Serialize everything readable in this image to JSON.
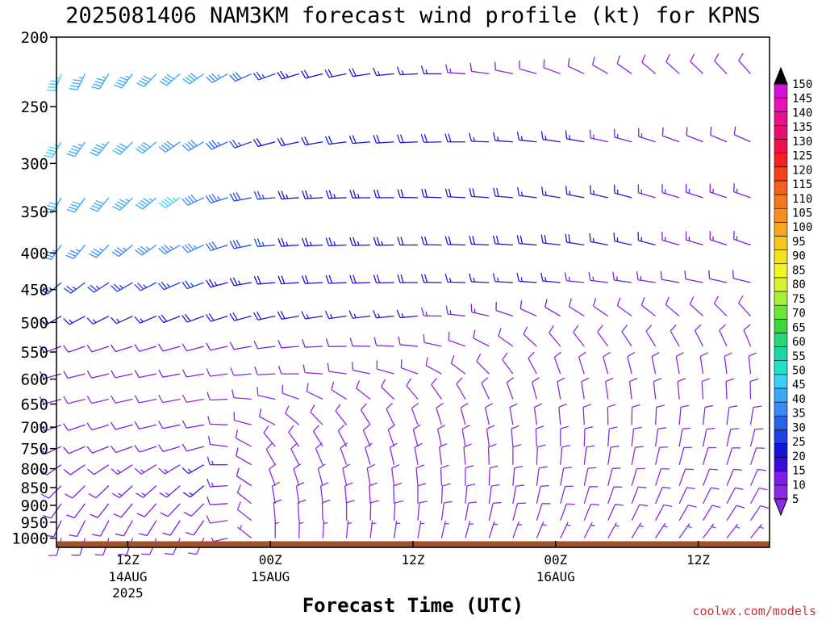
{
  "chart_data": {
    "type": "wind-barb-time-height",
    "title": "2025081406 NAM3KM forecast wind profile (kt) for KPNS",
    "xlabel": "Forecast Time (UTC)",
    "ylabel": "",
    "credit": "coolwx.com/models",
    "units": "kt",
    "y_axis": {
      "quantity": "pressure (hPa)",
      "scale": "log",
      "inverted": true,
      "range": [
        200,
        1030
      ],
      "ticks": [
        200,
        250,
        300,
        350,
        400,
        450,
        500,
        550,
        600,
        650,
        700,
        750,
        800,
        850,
        900,
        950,
        1000
      ]
    },
    "x_axis": {
      "quantity": "forecast hour from 2025081406",
      "range": [
        0,
        60
      ],
      "ticks": [
        {
          "hour": 6,
          "label": "12Z",
          "sub1": "14AUG",
          "sub2": "2025"
        },
        {
          "hour": 18,
          "label": "00Z",
          "sub1": "15AUG",
          "sub2": ""
        },
        {
          "hour": 30,
          "label": "12Z",
          "sub1": "",
          "sub2": ""
        },
        {
          "hour": 42,
          "label": "00Z",
          "sub1": "16AUG",
          "sub2": ""
        },
        {
          "hour": 54,
          "label": "12Z",
          "sub1": "",
          "sub2": ""
        }
      ]
    },
    "ground": {
      "top_pressure": 1010,
      "color": "#a0522d"
    },
    "times": [
      0,
      1,
      2,
      3,
      4,
      5,
      6,
      7,
      8,
      9,
      10,
      11,
      12,
      13,
      14,
      15,
      16,
      17,
      18,
      19,
      20,
      21,
      22,
      23,
      24,
      25,
      26,
      27,
      28,
      29,
      30,
      31,
      32,
      33,
      34,
      35,
      36,
      37,
      38,
      39,
      40,
      41,
      42,
      43,
      44,
      45,
      46,
      47,
      48,
      49,
      50,
      51,
      52,
      53,
      54,
      55,
      56,
      57,
      58,
      59,
      60
    ],
    "levels": [
      {
        "p": 225,
        "profile": [
          [
            0,
            200,
            45
          ],
          [
            12,
            235,
            40
          ],
          [
            18,
            250,
            25
          ],
          [
            25,
            260,
            18
          ],
          [
            32,
            270,
            15
          ],
          [
            42,
            290,
            8
          ],
          [
            50,
            310,
            8
          ],
          [
            60,
            320,
            10
          ]
        ]
      },
      {
        "p": 280,
        "profile": [
          [
            0,
            210,
            45
          ],
          [
            12,
            240,
            38
          ],
          [
            18,
            255,
            22
          ],
          [
            26,
            265,
            20
          ],
          [
            34,
            270,
            18
          ],
          [
            44,
            280,
            15
          ],
          [
            52,
            290,
            12
          ],
          [
            60,
            295,
            10
          ]
        ]
      },
      {
        "p": 335,
        "profile": [
          [
            0,
            210,
            40
          ],
          [
            10,
            235,
            45
          ],
          [
            13,
            250,
            35
          ],
          [
            18,
            265,
            25
          ],
          [
            28,
            270,
            22
          ],
          [
            38,
            275,
            18
          ],
          [
            48,
            285,
            15
          ],
          [
            60,
            290,
            12
          ]
        ]
      },
      {
        "p": 390,
        "profile": [
          [
            0,
            215,
            35
          ],
          [
            12,
            245,
            35
          ],
          [
            18,
            265,
            25
          ],
          [
            30,
            270,
            22
          ],
          [
            40,
            275,
            20
          ],
          [
            50,
            285,
            15
          ],
          [
            60,
            290,
            12
          ]
        ]
      },
      {
        "p": 440,
        "profile": [
          [
            0,
            230,
            25
          ],
          [
            12,
            250,
            25
          ],
          [
            18,
            265,
            22
          ],
          [
            30,
            270,
            18
          ],
          [
            42,
            275,
            15
          ],
          [
            52,
            280,
            12
          ],
          [
            60,
            285,
            10
          ]
        ]
      },
      {
        "p": 490,
        "profile": [
          [
            0,
            240,
            15
          ],
          [
            12,
            250,
            18
          ],
          [
            20,
            260,
            18
          ],
          [
            30,
            265,
            15
          ],
          [
            42,
            300,
            10
          ],
          [
            52,
            310,
            8
          ],
          [
            60,
            320,
            8
          ]
        ]
      },
      {
        "p": 540,
        "profile": [
          [
            0,
            250,
            12
          ],
          [
            12,
            255,
            12
          ],
          [
            20,
            265,
            12
          ],
          [
            30,
            275,
            10
          ],
          [
            42,
            320,
            8
          ],
          [
            52,
            330,
            8
          ],
          [
            60,
            340,
            8
          ]
        ]
      },
      {
        "p": 590,
        "profile": [
          [
            0,
            255,
            10
          ],
          [
            12,
            260,
            10
          ],
          [
            20,
            270,
            8
          ],
          [
            30,
            290,
            8
          ],
          [
            42,
            340,
            8
          ],
          [
            52,
            350,
            8
          ],
          [
            60,
            355,
            8
          ]
        ]
      },
      {
        "p": 640,
        "profile": [
          [
            0,
            255,
            10
          ],
          [
            12,
            260,
            8
          ],
          [
            20,
            290,
            8
          ],
          [
            30,
            320,
            8
          ],
          [
            42,
            350,
            8
          ],
          [
            52,
            355,
            8
          ],
          [
            60,
            0,
            8
          ]
        ]
      },
      {
        "p": 695,
        "profile": [
          [
            0,
            250,
            10
          ],
          [
            12,
            260,
            10
          ],
          [
            20,
            310,
            8
          ],
          [
            30,
            340,
            8
          ],
          [
            42,
            355,
            8
          ],
          [
            52,
            5,
            8
          ],
          [
            60,
            10,
            8
          ]
        ]
      },
      {
        "p": 745,
        "profile": [
          [
            0,
            245,
            10
          ],
          [
            12,
            255,
            12
          ],
          [
            18,
            320,
            8
          ],
          [
            30,
            345,
            8
          ],
          [
            42,
            0,
            8
          ],
          [
            52,
            10,
            8
          ],
          [
            60,
            15,
            8
          ]
        ]
      },
      {
        "p": 790,
        "profile": [
          [
            0,
            235,
            10
          ],
          [
            12,
            240,
            15
          ],
          [
            18,
            330,
            8
          ],
          [
            30,
            350,
            8
          ],
          [
            42,
            5,
            8
          ],
          [
            52,
            15,
            8
          ],
          [
            60,
            20,
            8
          ]
        ]
      },
      {
        "p": 845,
        "profile": [
          [
            0,
            225,
            10
          ],
          [
            12,
            230,
            15
          ],
          [
            18,
            340,
            8
          ],
          [
            30,
            355,
            8
          ],
          [
            42,
            10,
            8
          ],
          [
            52,
            20,
            8
          ],
          [
            60,
            25,
            8
          ]
        ]
      },
      {
        "p": 895,
        "profile": [
          [
            0,
            215,
            10
          ],
          [
            12,
            225,
            12
          ],
          [
            18,
            350,
            8
          ],
          [
            30,
            0,
            8
          ],
          [
            42,
            15,
            8
          ],
          [
            52,
            25,
            8
          ],
          [
            60,
            30,
            8
          ]
        ]
      },
      {
        "p": 945,
        "profile": [
          [
            0,
            205,
            10
          ],
          [
            12,
            215,
            10
          ],
          [
            18,
            355,
            8
          ],
          [
            30,
            5,
            8
          ],
          [
            42,
            20,
            8
          ],
          [
            52,
            30,
            8
          ],
          [
            60,
            35,
            8
          ]
        ]
      },
      {
        "p": 1000,
        "profile": [
          [
            0,
            195,
            8
          ],
          [
            12,
            205,
            8
          ],
          [
            18,
            0,
            6
          ],
          [
            30,
            10,
            6
          ],
          [
            42,
            25,
            6
          ],
          [
            52,
            35,
            6
          ],
          [
            60,
            40,
            6
          ]
        ]
      }
    ],
    "colorbar": {
      "labels": [
        5,
        10,
        15,
        20,
        25,
        30,
        35,
        40,
        45,
        50,
        55,
        60,
        65,
        70,
        75,
        80,
        85,
        90,
        95,
        100,
        105,
        110,
        115,
        120,
        125,
        130,
        135,
        140,
        145,
        150
      ],
      "colors": [
        "#8a2be2",
        "#7b1fe6",
        "#3a0cd9",
        "#1313d6",
        "#1f3fe0",
        "#2a62ea",
        "#3a8cf5",
        "#3aa8f5",
        "#3ad0f5",
        "#1fe0c8",
        "#1ad6a8",
        "#2ad67a",
        "#3ad63a",
        "#6ae63a",
        "#a8f03a",
        "#d6f52a",
        "#f5f51f",
        "#f5e01f",
        "#f5c81f",
        "#f5a81f",
        "#f5901f",
        "#f5781f",
        "#f5601f",
        "#f5401f",
        "#f5201f",
        "#f01050",
        "#e8106e",
        "#e8108c",
        "#e810b8",
        "#d610d6"
      ]
    }
  }
}
